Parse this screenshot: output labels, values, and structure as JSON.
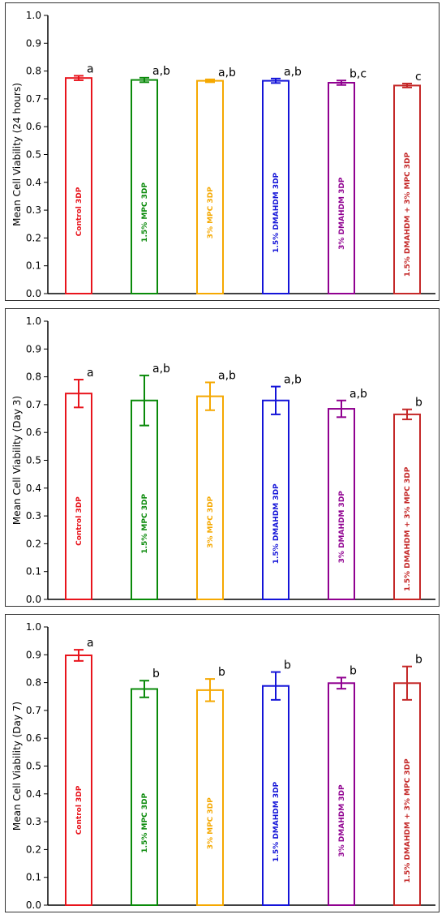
{
  "chart_data": [
    {
      "type": "bar",
      "ylabel": "Mean Cell Viability (24 hours)",
      "ylim": [
        0,
        1.0
      ],
      "yticks": [
        "0.0",
        "0.1",
        "0.2",
        "0.3",
        "0.4",
        "0.5",
        "0.6",
        "0.7",
        "0.8",
        "0.9",
        "1.0"
      ],
      "categories": [
        "Control 3DP",
        "1.5% MPC 3DP",
        "3% MPC 3DP",
        "1.5% DMAHDM 3DP",
        "3% DMAHDM 3DP",
        "1.5% DMAHDM + 3% MPC 3DP"
      ],
      "colors": [
        "#e8141c",
        "#0a8a0a",
        "#f5a800",
        "#1414d8",
        "#900090",
        "#c42828"
      ],
      "values": [
        0.775,
        0.768,
        0.765,
        0.765,
        0.758,
        0.748
      ],
      "errors": [
        0.008,
        0.008,
        0.005,
        0.008,
        0.008,
        0.007
      ],
      "letters": [
        "a",
        "a,b",
        "a,b",
        "a,b",
        "b,c",
        "c"
      ]
    },
    {
      "type": "bar",
      "ylabel": "Mean Cell Viability (Day 3)",
      "ylim": [
        0,
        1.0
      ],
      "yticks": [
        "0.0",
        "0.1",
        "0.2",
        "0.3",
        "0.4",
        "0.5",
        "0.6",
        "0.7",
        "0.8",
        "0.9",
        "1.0"
      ],
      "categories": [
        "Control 3DP",
        "1.5% MPC 3DP",
        "3% MPC 3DP",
        "1.5% DMAHDM 3DP",
        "3% DMAHDM 3DP",
        "1.5% DMAHDM + 3% MPC 3DP"
      ],
      "colors": [
        "#e8141c",
        "#0a8a0a",
        "#f5a800",
        "#1414d8",
        "#900090",
        "#c42828"
      ],
      "values": [
        0.74,
        0.715,
        0.73,
        0.715,
        0.685,
        0.665
      ],
      "errors": [
        0.05,
        0.09,
        0.05,
        0.05,
        0.03,
        0.018
      ],
      "letters": [
        "a",
        "a,b",
        "a,b",
        "a,b",
        "a,b",
        "b"
      ]
    },
    {
      "type": "bar",
      "ylabel": "Mean Cell Viability (Day 7)",
      "ylim": [
        0,
        1.0
      ],
      "yticks": [
        "0.0",
        "0.1",
        "0.2",
        "0.3",
        "0.4",
        "0.5",
        "0.6",
        "0.7",
        "0.8",
        "0.9",
        "1.0"
      ],
      "categories": [
        "Control 3DP",
        "1.5% MPC 3DP",
        "3% MPC 3DP",
        "1.5% DMAHDM 3DP",
        "3% DMAHDM 3DP",
        "1.5% DMAHDM + 3% MPC 3DP"
      ],
      "colors": [
        "#e8141c",
        "#0a8a0a",
        "#f5a800",
        "#1414d8",
        "#900090",
        "#c42828"
      ],
      "values": [
        0.898,
        0.777,
        0.773,
        0.788,
        0.798,
        0.798
      ],
      "errors": [
        0.02,
        0.03,
        0.04,
        0.05,
        0.02,
        0.06
      ],
      "letters": [
        "a",
        "b",
        "b",
        "b",
        "b",
        "b"
      ]
    }
  ]
}
